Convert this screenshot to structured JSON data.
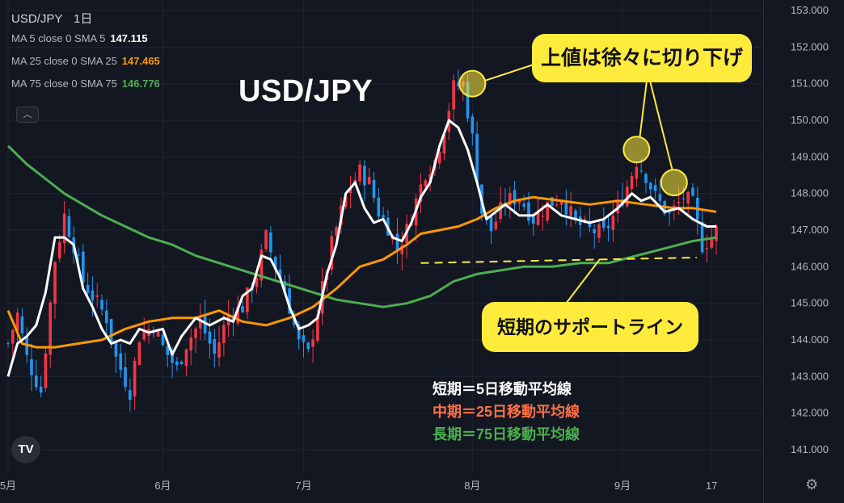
{
  "header": {
    "symbol": "USD/JPY",
    "interval": "1日"
  },
  "legend": [
    {
      "label": "MA 5 close 0 SMA 5",
      "value": "147.115",
      "color": "#ffffff"
    },
    {
      "label": "MA 25 close 0 SMA 25",
      "value": "147.465",
      "color": "#ff9800"
    },
    {
      "label": "MA 75 close 0 SMA 75",
      "value": "146.776",
      "color": "#4caf50"
    }
  ],
  "collapse_icon": "chevron-up-icon",
  "collapse_glyph": "︿",
  "big_title": "USD/JPY",
  "annotations": {
    "top_callout": "上値は徐々に切り下げ",
    "support_callout": "短期のサポートライン"
  },
  "ma_notes": [
    {
      "text": "短期＝5日移動平均線",
      "color": "#ffffff"
    },
    {
      "text": "中期＝25日移動平均線",
      "color": "#ff7043"
    },
    {
      "text": "長期＝75日移動平均線",
      "color": "#4caf50"
    }
  ],
  "logo_text": "TV",
  "settings_icon": "gear-icon",
  "settings_glyph": "⚙",
  "chart_data": {
    "type": "candlestick",
    "y_ticks": [
      "153.000",
      "152.000",
      "151.000",
      "150.000",
      "149.000",
      "148.000",
      "147.000",
      "146.000",
      "145.000",
      "144.000",
      "143.000",
      "142.000",
      "141.000"
    ],
    "ylim": [
      140.5,
      153.3
    ],
    "x_ticks": [
      {
        "label": "5月",
        "index": 0
      },
      {
        "label": "6月",
        "index": 33
      },
      {
        "label": "7月",
        "index": 63
      },
      {
        "label": "8月",
        "index": 99
      },
      {
        "label": "9月",
        "index": 131
      },
      {
        "label": "17",
        "index": 150
      }
    ],
    "n_points": 152,
    "up_color": "#f23645",
    "down_color": "#2196f3",
    "close_anchors": [
      [
        0,
        143.9
      ],
      [
        2,
        144.7
      ],
      [
        4,
        143.5
      ],
      [
        7,
        142.6
      ],
      [
        10,
        146.2
      ],
      [
        12,
        147.4
      ],
      [
        14,
        146.6
      ],
      [
        16,
        145.6
      ],
      [
        19,
        145.0
      ],
      [
        21,
        144.6
      ],
      [
        23,
        143.5
      ],
      [
        26,
        142.6
      ],
      [
        28,
        144.1
      ],
      [
        31,
        144.4
      ],
      [
        33,
        143.8
      ],
      [
        36,
        143.2
      ],
      [
        38,
        143.9
      ],
      [
        41,
        144.5
      ],
      [
        44,
        143.6
      ],
      [
        47,
        144.7
      ],
      [
        50,
        144.9
      ],
      [
        53,
        145.8
      ],
      [
        55,
        146.8
      ],
      [
        57,
        146.0
      ],
      [
        59,
        145.4
      ],
      [
        62,
        143.9
      ],
      [
        64,
        143.6
      ],
      [
        66,
        144.8
      ],
      [
        69,
        146.6
      ],
      [
        71,
        147.5
      ],
      [
        73,
        148.2
      ],
      [
        75,
        148.6
      ],
      [
        77,
        148.3
      ],
      [
        79,
        147.5
      ],
      [
        81,
        147.1
      ],
      [
        83,
        146.5
      ],
      [
        85,
        147.0
      ],
      [
        87,
        147.8
      ],
      [
        89,
        148.6
      ],
      [
        91,
        148.9
      ],
      [
        93,
        149.8
      ],
      [
        95,
        150.9
      ],
      [
        97,
        151.0
      ],
      [
        99,
        149.5
      ],
      [
        101,
        147.5
      ],
      [
        103,
        147.0
      ],
      [
        106,
        147.8
      ],
      [
        109,
        147.9
      ],
      [
        112,
        147.3
      ],
      [
        115,
        147.7
      ],
      [
        118,
        147.9
      ],
      [
        121,
        147.2
      ],
      [
        124,
        147.0
      ],
      [
        127,
        146.9
      ],
      [
        130,
        147.6
      ],
      [
        132,
        148.2
      ],
      [
        134,
        148.9
      ],
      [
        136,
        148.5
      ],
      [
        138,
        147.9
      ],
      [
        141,
        147.4
      ],
      [
        144,
        147.9
      ],
      [
        146,
        147.7
      ],
      [
        148,
        146.6
      ],
      [
        150,
        146.8
      ],
      [
        151,
        147.0
      ]
    ],
    "series": [
      {
        "name": "MA 5 close 0 SMA 5",
        "color": "#ffffff",
        "last": 147.115,
        "points": [
          [
            0,
            143.0
          ],
          [
            2,
            143.9
          ],
          [
            4,
            144.1
          ],
          [
            6,
            144.4
          ],
          [
            8,
            145.3
          ],
          [
            10,
            146.8
          ],
          [
            12,
            146.8
          ],
          [
            14,
            146.6
          ],
          [
            16,
            145.4
          ],
          [
            18,
            144.9
          ],
          [
            20,
            144.3
          ],
          [
            22,
            143.9
          ],
          [
            24,
            144.0
          ],
          [
            26,
            143.9
          ],
          [
            28,
            144.3
          ],
          [
            30,
            144.2
          ],
          [
            33,
            144.3
          ],
          [
            35,
            143.6
          ],
          [
            37,
            144.1
          ],
          [
            40,
            144.6
          ],
          [
            43,
            144.4
          ],
          [
            46,
            144.6
          ],
          [
            48,
            144.5
          ],
          [
            50,
            145.2
          ],
          [
            52,
            145.4
          ],
          [
            54,
            146.3
          ],
          [
            56,
            146.2
          ],
          [
            58,
            145.7
          ],
          [
            60,
            144.9
          ],
          [
            62,
            144.3
          ],
          [
            64,
            144.4
          ],
          [
            66,
            144.6
          ],
          [
            68,
            145.8
          ],
          [
            70,
            146.6
          ],
          [
            72,
            148.0
          ],
          [
            74,
            148.3
          ],
          [
            76,
            147.6
          ],
          [
            78,
            147.2
          ],
          [
            80,
            147.3
          ],
          [
            82,
            146.8
          ],
          [
            84,
            146.7
          ],
          [
            86,
            147.2
          ],
          [
            88,
            147.9
          ],
          [
            90,
            148.3
          ],
          [
            92,
            149.3
          ],
          [
            94,
            150.0
          ],
          [
            96,
            149.8
          ],
          [
            98,
            149.2
          ],
          [
            100,
            148.3
          ],
          [
            102,
            147.3
          ],
          [
            104,
            147.5
          ],
          [
            106,
            147.7
          ],
          [
            109,
            147.4
          ],
          [
            112,
            147.4
          ],
          [
            115,
            147.7
          ],
          [
            118,
            147.4
          ],
          [
            121,
            147.3
          ],
          [
            124,
            147.2
          ],
          [
            127,
            147.3
          ],
          [
            130,
            147.6
          ],
          [
            133,
            148.0
          ],
          [
            135,
            147.8
          ],
          [
            137,
            147.9
          ],
          [
            140,
            147.5
          ],
          [
            143,
            147.6
          ],
          [
            146,
            147.3
          ],
          [
            149,
            147.1
          ],
          [
            151,
            147.1
          ]
        ]
      },
      {
        "name": "MA 25 close 0 SMA 25",
        "color": "#ff9800",
        "last": 147.465,
        "points": [
          [
            0,
            144.8
          ],
          [
            3,
            143.9
          ],
          [
            6,
            143.8
          ],
          [
            10,
            143.8
          ],
          [
            15,
            143.9
          ],
          [
            20,
            144.0
          ],
          [
            25,
            144.3
          ],
          [
            30,
            144.5
          ],
          [
            35,
            144.6
          ],
          [
            40,
            144.6
          ],
          [
            45,
            144.8
          ],
          [
            50,
            144.5
          ],
          [
            55,
            144.4
          ],
          [
            60,
            144.6
          ],
          [
            65,
            144.9
          ],
          [
            70,
            145.4
          ],
          [
            75,
            146.0
          ],
          [
            80,
            146.2
          ],
          [
            85,
            146.6
          ],
          [
            88,
            146.9
          ],
          [
            92,
            147.0
          ],
          [
            96,
            147.1
          ],
          [
            100,
            147.3
          ],
          [
            104,
            147.6
          ],
          [
            108,
            147.8
          ],
          [
            112,
            147.9
          ],
          [
            118,
            147.8
          ],
          [
            124,
            147.7
          ],
          [
            130,
            147.8
          ],
          [
            136,
            147.7
          ],
          [
            142,
            147.6
          ],
          [
            146,
            147.6
          ],
          [
            151,
            147.5
          ]
        ]
      },
      {
        "name": "MA 75 close 0 SMA 75",
        "color": "#4caf50",
        "last": 146.776,
        "points": [
          [
            0,
            149.3
          ],
          [
            4,
            148.8
          ],
          [
            8,
            148.4
          ],
          [
            12,
            148.0
          ],
          [
            16,
            147.7
          ],
          [
            20,
            147.4
          ],
          [
            25,
            147.1
          ],
          [
            30,
            146.8
          ],
          [
            35,
            146.6
          ],
          [
            40,
            146.3
          ],
          [
            45,
            146.1
          ],
          [
            50,
            145.9
          ],
          [
            55,
            145.7
          ],
          [
            60,
            145.5
          ],
          [
            65,
            145.3
          ],
          [
            70,
            145.1
          ],
          [
            75,
            145.0
          ],
          [
            80,
            144.9
          ],
          [
            85,
            145.0
          ],
          [
            90,
            145.2
          ],
          [
            95,
            145.6
          ],
          [
            100,
            145.8
          ],
          [
            105,
            145.9
          ],
          [
            110,
            146.0
          ],
          [
            116,
            146.0
          ],
          [
            122,
            146.1
          ],
          [
            128,
            146.1
          ],
          [
            134,
            146.3
          ],
          [
            140,
            146.5
          ],
          [
            146,
            146.7
          ],
          [
            151,
            146.8
          ]
        ]
      }
    ],
    "support_line": {
      "from": [
        88,
        146.1
      ],
      "to": [
        152,
        146.25
      ],
      "color": "#ffeb3b"
    },
    "highlights": [
      {
        "index": 99,
        "price": 151.0
      },
      {
        "index": 134,
        "price": 149.2
      },
      {
        "index": 142,
        "price": 148.3
      }
    ]
  }
}
